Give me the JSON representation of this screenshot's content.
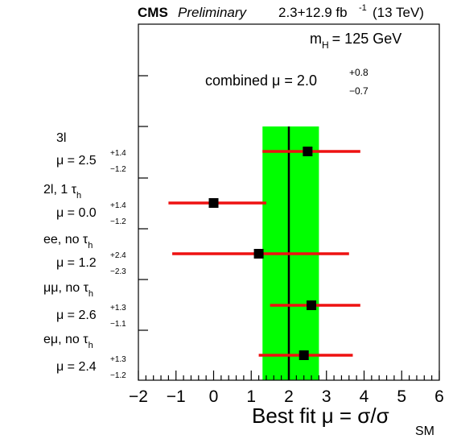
{
  "header": {
    "experiment": "CMS",
    "status": "Preliminary",
    "lumi_main": "2.3+12.9 fb",
    "lumi_exp": "-1",
    "lumi_energy": "(13 TeV)"
  },
  "annotation": {
    "mass_prefix": "m",
    "mass_sub": "H",
    "mass_value": "= 125 GeV",
    "combined_prefix": "combined μ = 2.0",
    "combined_up": "+0.8",
    "combined_down": "−0.7"
  },
  "xaxis_title": {
    "main": "Best fit μ = σ/σ",
    "sub": "SM"
  },
  "colors": {
    "band": "#00ff00",
    "error_bar": "#ee1111",
    "marker": "#000000",
    "line": "#000000"
  },
  "chart_data": {
    "type": "scatter",
    "orientation": "horizontal",
    "xlim": [
      -2,
      6
    ],
    "x_ticks": [
      -2,
      -1,
      0,
      1,
      2,
      3,
      4,
      5,
      6
    ],
    "combined": {
      "value": 2.0,
      "err_up": 0.8,
      "err_down": 0.7
    },
    "categories": [
      {
        "name": "3l",
        "sub": "",
        "mu_text": "μ = 2.5",
        "up_text": "+1.4",
        "down_text": "−1.2",
        "value": 2.5,
        "err_up": 1.4,
        "err_down": 1.2
      },
      {
        "name": "2l, 1 τ",
        "sub": "h",
        "mu_text": "μ = 0.0",
        "up_text": "+1.4",
        "down_text": "−1.2",
        "value": 0.0,
        "err_up": 1.4,
        "err_down": 1.2
      },
      {
        "name": "ee, no τ",
        "sub": "h",
        "mu_text": "μ = 1.2",
        "up_text": "+2.4",
        "down_text": "−2.3",
        "value": 1.2,
        "err_up": 2.4,
        "err_down": 2.3
      },
      {
        "name": "μμ, no τ",
        "sub": "h",
        "mu_text": "μ = 2.6",
        "up_text": "+1.3",
        "down_text": "−1.1",
        "value": 2.6,
        "err_up": 1.3,
        "err_down": 1.1
      },
      {
        "name": "eμ, no τ",
        "sub": "h",
        "mu_text": "μ = 2.4",
        "up_text": "+1.3",
        "down_text": "−1.2",
        "value": 2.4,
        "err_up": 1.3,
        "err_down": 1.2
      }
    ]
  }
}
